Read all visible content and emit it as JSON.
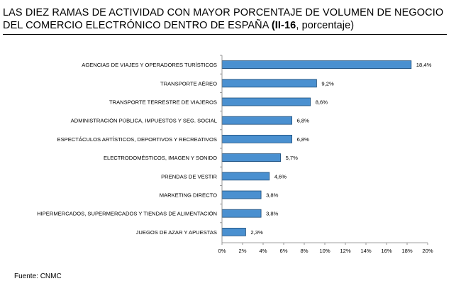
{
  "title": {
    "line1": "LAS DIEZ RAMAS DE ACTIVIDAD CON MAYOR PORCENTAJE DE VOLUMEN DE NEGOCIO",
    "line2_main": "DEL COMERCIO ELECTRÓNICO DENTRO DE ESPAÑA",
    "line2_bold": "(II-16",
    "line2_end": ", porcentaje)"
  },
  "source": "Fuente: CNMC",
  "chart_data": {
    "type": "bar",
    "orientation": "horizontal",
    "categories": [
      "AGENCIAS DE VIAJES Y OPERADORES TURÍSTICOS",
      "TRANSPORTE AÉREO",
      "TRANSPORTE TERRESTRE DE VIAJEROS",
      "ADMINISTRACIÓN PÚBLICA, IMPUESTOS Y SEG. SOCIAL",
      "ESPECTÁCULOS ARTÍSTICOS, DEPORTIVOS Y RECREATIVOS",
      "ELECTRODOMÉSTICOS,  IMAGEN Y SONIDO",
      "PRENDAS DE VESTIR",
      "MARKETING DIRECTO",
      "HIPERMERCADOS, SUPERMERCADOS Y TIENDAS DE ALIMENTACIÓN",
      "JUEGOS DE AZAR Y APUESTAS"
    ],
    "values": [
      18.4,
      9.2,
      8.6,
      6.8,
      6.8,
      5.7,
      4.6,
      3.8,
      3.8,
      2.3
    ],
    "data_labels": [
      "18,4%",
      "9,2%",
      "8,6%",
      "6,8%",
      "6,8%",
      "5,7%",
      "4,6%",
      "3,8%",
      "3,8%",
      "2,3%"
    ],
    "xlim": [
      0,
      20
    ],
    "xticks": [
      "0%",
      "2%",
      "4%",
      "6%",
      "8%",
      "10%",
      "12%",
      "14%",
      "16%",
      "18%",
      "20%"
    ],
    "grid": false,
    "bar_color": "#4a90d0",
    "bar_edge_color": "#1f4e79"
  }
}
